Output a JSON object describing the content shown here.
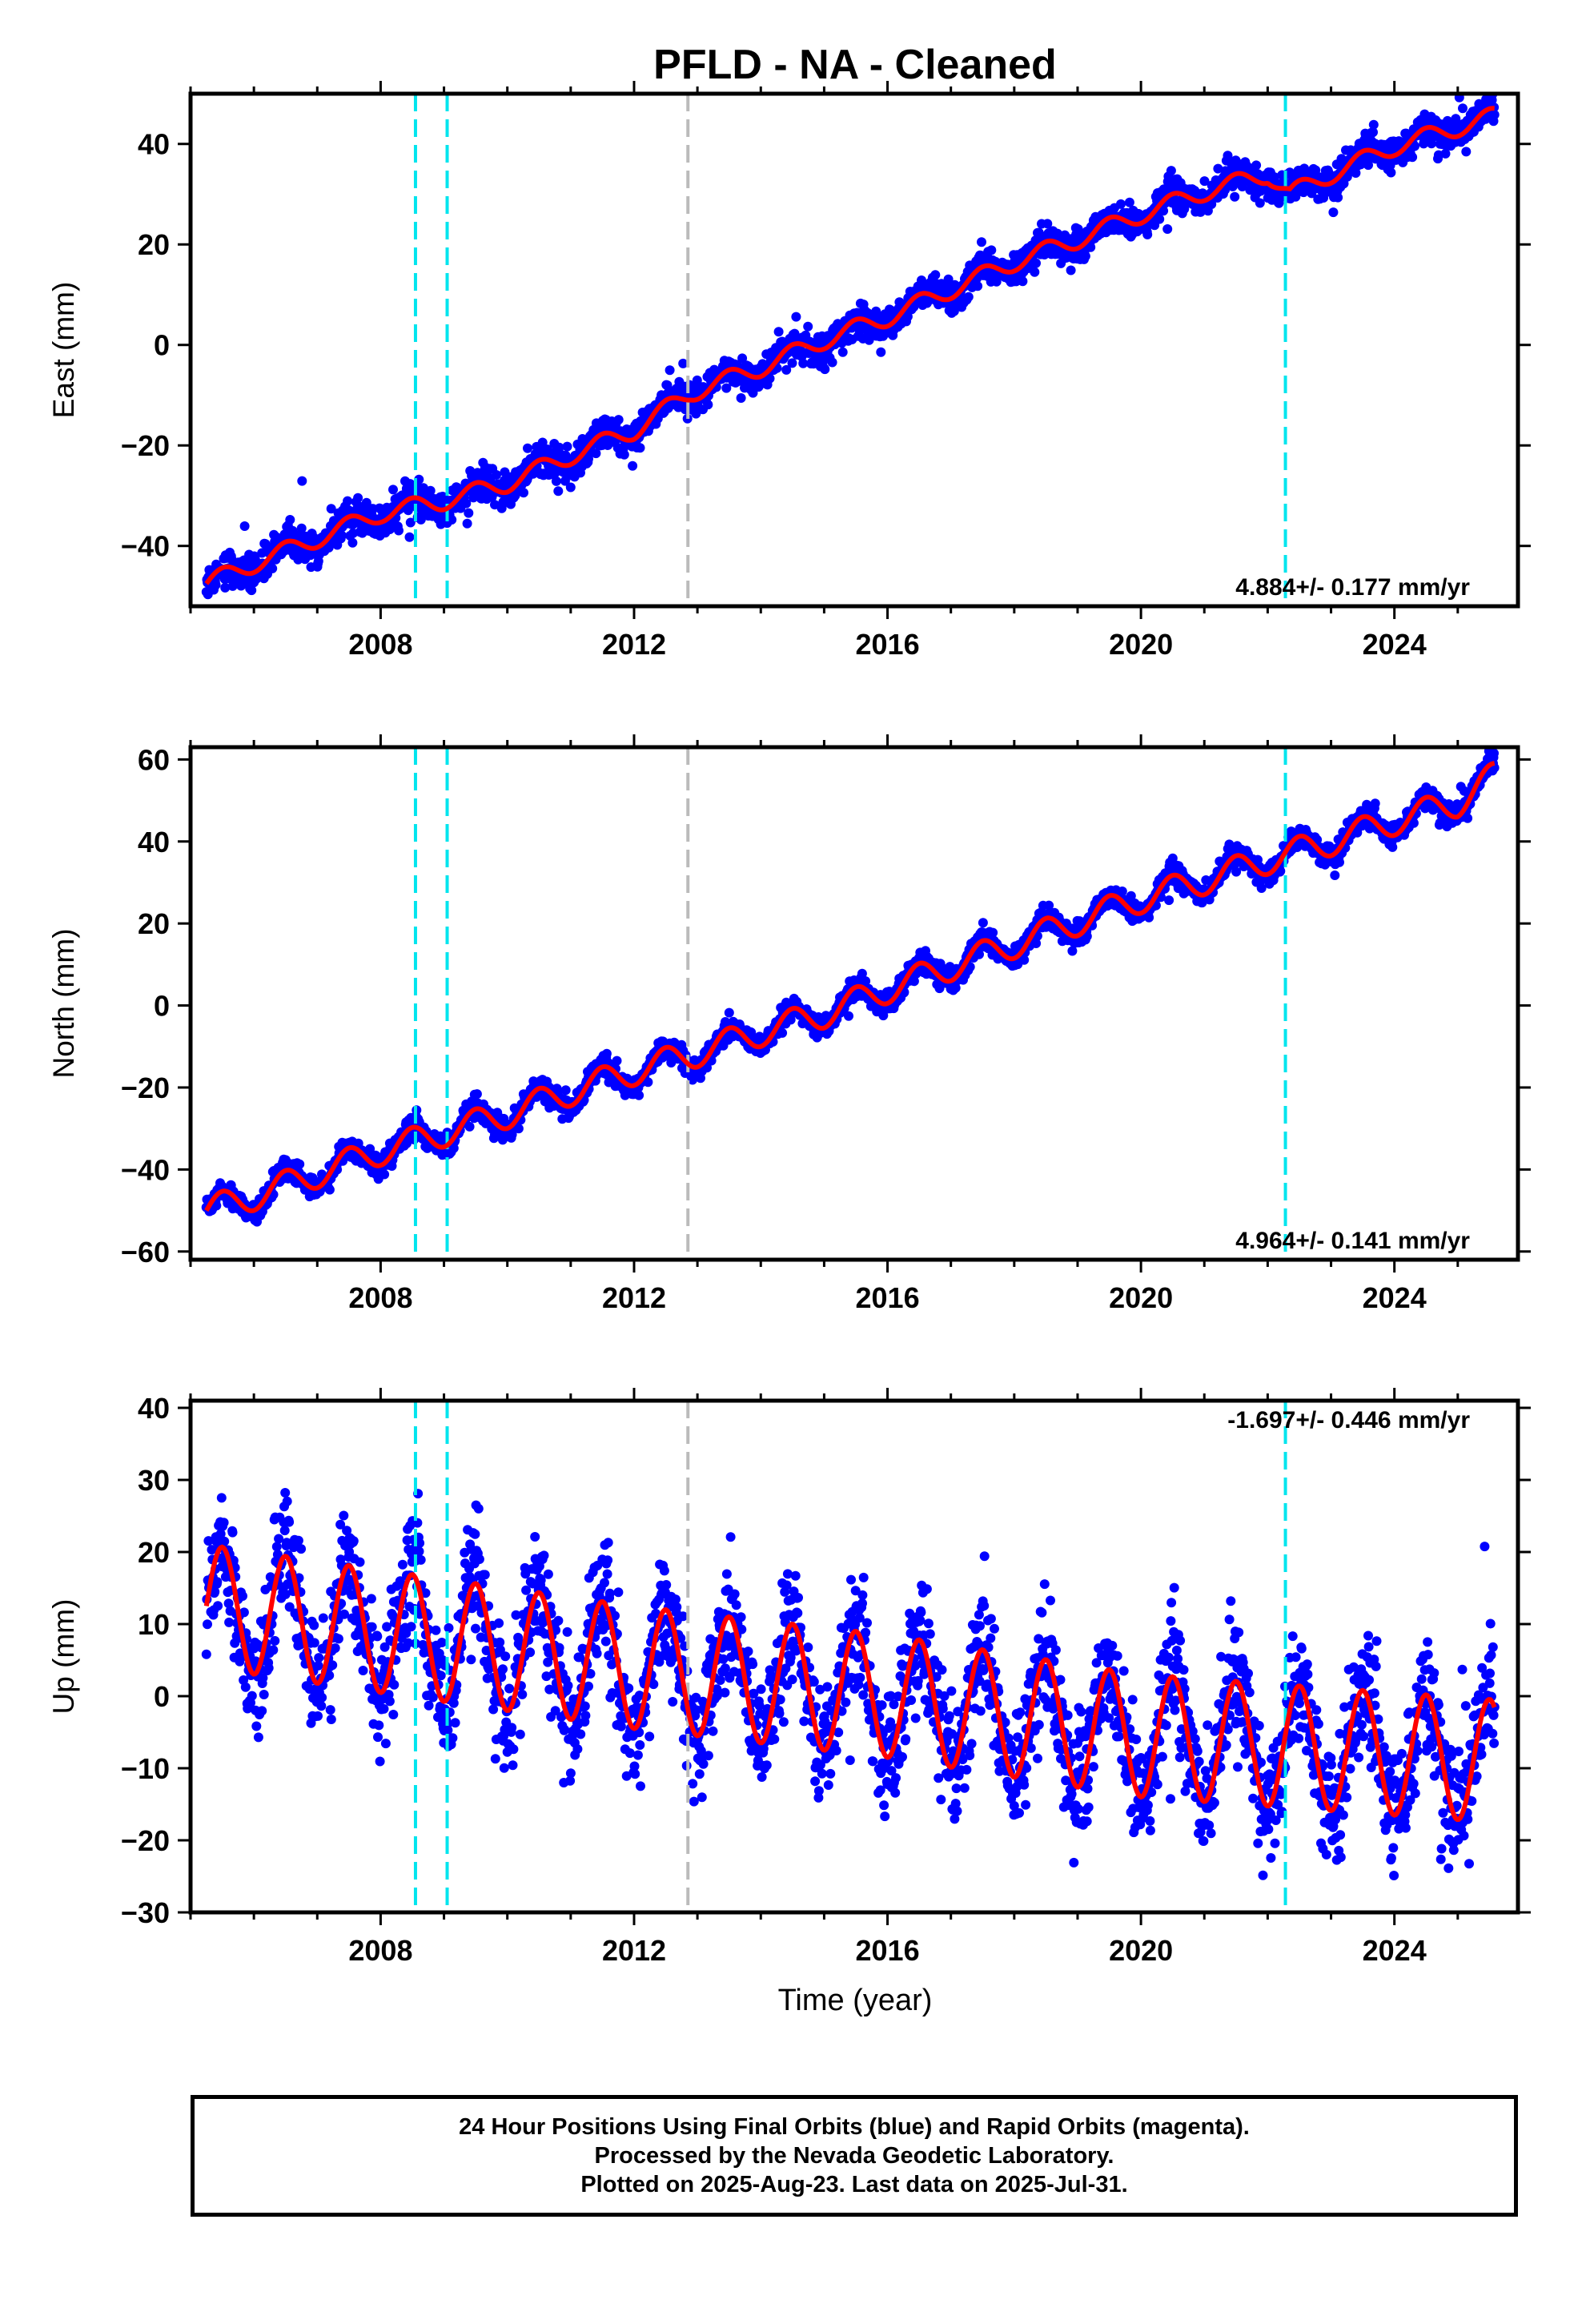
{
  "title": "PFLD  - NA - Cleaned",
  "xlabel": "Time (year)",
  "footer": {
    "line1": "24 Hour Positions Using Final Orbits (blue) and Rapid Orbits (magenta).",
    "line2": "Processed by the Nevada Geodetic Laboratory.",
    "line3": "Plotted on 2025-Aug-23. Last data on 2025-Jul-31."
  },
  "colors": {
    "data": "#0000ff",
    "model": "#ff0000",
    "offset_equipment": "#00e5ee",
    "offset_other": "#bbbbbb"
  },
  "chart_data": [
    {
      "type": "scatter",
      "name": "east",
      "ylabel": "East (mm)",
      "xlim": [
        2005.0,
        2025.95
      ],
      "ylim": [
        -52,
        50
      ],
      "xticks": [
        2008,
        2012,
        2016,
        2020,
        2024
      ],
      "yticks": [
        -40,
        -20,
        0,
        20,
        40
      ],
      "rate": "4.884+/- 0.177 mm/yr",
      "rate_position": "bottom-right",
      "start": 2005.25,
      "end": 2025.58,
      "offsets": [
        {
          "x": 2008.55,
          "kind": "equipment"
        },
        {
          "x": 2009.05,
          "kind": "equipment"
        },
        {
          "x": 2012.85,
          "kind": "other"
        },
        {
          "x": 2022.28,
          "kind": "equipment"
        }
      ],
      "model": [
        {
          "x": 2005.25,
          "y": -47.5
        },
        {
          "x": 2006.0,
          "y": -43.5
        },
        {
          "x": 2007.0,
          "y": -38.5
        },
        {
          "x": 2008.0,
          "y": -33.5
        },
        {
          "x": 2009.0,
          "y": -31.0
        },
        {
          "x": 2010.0,
          "y": -27.5
        },
        {
          "x": 2011.0,
          "y": -22.0
        },
        {
          "x": 2012.0,
          "y": -17.0
        },
        {
          "x": 2012.9,
          "y": -9.5
        },
        {
          "x": 2014.0,
          "y": -4.5
        },
        {
          "x": 2015.0,
          "y": 1.0
        },
        {
          "x": 2016.0,
          "y": 5.5
        },
        {
          "x": 2017.0,
          "y": 11.0
        },
        {
          "x": 2018.0,
          "y": 16.5
        },
        {
          "x": 2019.0,
          "y": 21.0
        },
        {
          "x": 2020.0,
          "y": 26.0
        },
        {
          "x": 2021.0,
          "y": 30.5
        },
        {
          "x": 2022.0,
          "y": 34.0
        },
        {
          "x": 2022.35,
          "y": 30.0
        },
        {
          "x": 2023.0,
          "y": 34.0
        },
        {
          "x": 2024.0,
          "y": 39.5
        },
        {
          "x": 2025.58,
          "y": 45.5
        }
      ],
      "seasonal_amplitude": 1.8,
      "scatter_sigma": 1.6
    },
    {
      "type": "scatter",
      "name": "north",
      "ylabel": "North (mm)",
      "xlim": [
        2005.0,
        2025.95
      ],
      "ylim": [
        -62,
        63
      ],
      "xticks": [
        2008,
        2012,
        2016,
        2020,
        2024
      ],
      "yticks": [
        -60,
        -40,
        -20,
        0,
        20,
        40,
        60
      ],
      "rate": "4.964+/- 0.141 mm/yr",
      "rate_position": "bottom-right",
      "start": 2005.25,
      "end": 2025.58,
      "offsets": [
        {
          "x": 2008.55,
          "kind": "equipment"
        },
        {
          "x": 2009.05,
          "kind": "equipment"
        },
        {
          "x": 2012.85,
          "kind": "other"
        },
        {
          "x": 2022.28,
          "kind": "equipment"
        }
      ],
      "model": [
        {
          "x": 2005.25,
          "y": -50.0
        },
        {
          "x": 2006.0,
          "y": -46.5
        },
        {
          "x": 2007.0,
          "y": -41.0
        },
        {
          "x": 2008.0,
          "y": -35.5
        },
        {
          "x": 2009.0,
          "y": -31.0
        },
        {
          "x": 2010.0,
          "y": -26.5
        },
        {
          "x": 2011.0,
          "y": -21.0
        },
        {
          "x": 2012.0,
          "y": -16.0
        },
        {
          "x": 2013.0,
          "y": -11.5
        },
        {
          "x": 2014.0,
          "y": -6.5
        },
        {
          "x": 2015.0,
          "y": -2.0
        },
        {
          "x": 2016.0,
          "y": 4.0
        },
        {
          "x": 2017.0,
          "y": 9.5
        },
        {
          "x": 2018.0,
          "y": 15.0
        },
        {
          "x": 2019.0,
          "y": 20.5
        },
        {
          "x": 2020.0,
          "y": 26.0
        },
        {
          "x": 2021.0,
          "y": 30.5
        },
        {
          "x": 2022.0,
          "y": 35.5
        },
        {
          "x": 2023.0,
          "y": 40.0
        },
        {
          "x": 2024.0,
          "y": 45.0
        },
        {
          "x": 2025.0,
          "y": 49.5
        },
        {
          "x": 2025.58,
          "y": 56.0
        }
      ],
      "seasonal_amplitude": 3.5,
      "scatter_sigma": 1.4
    },
    {
      "type": "scatter",
      "name": "up",
      "ylabel": "Up (mm)",
      "xlim": [
        2005.0,
        2025.95
      ],
      "ylim": [
        -30,
        41
      ],
      "xticks": [
        2008,
        2012,
        2016,
        2020,
        2024
      ],
      "yticks": [
        -30,
        -20,
        -10,
        0,
        10,
        20,
        30,
        40
      ],
      "rate": "-1.697+/- 0.446 mm/yr",
      "rate_position": "top-right",
      "start": 2005.25,
      "end": 2025.58,
      "offsets": [
        {
          "x": 2008.55,
          "kind": "equipment"
        },
        {
          "x": 2009.05,
          "kind": "equipment"
        },
        {
          "x": 2012.85,
          "kind": "other"
        },
        {
          "x": 2022.28,
          "kind": "equipment"
        }
      ],
      "model": [
        {
          "x": 2005.25,
          "y": 12.5
        },
        {
          "x": 2008.0,
          "y": 9.0
        },
        {
          "x": 2012.0,
          "y": 4.0
        },
        {
          "x": 2016.0,
          "y": 0.0
        },
        {
          "x": 2020.0,
          "y": -5.5
        },
        {
          "x": 2025.58,
          "y": -9.0
        }
      ],
      "seasonal_amplitude": 8.5,
      "scatter_sigma": 4.2
    }
  ]
}
